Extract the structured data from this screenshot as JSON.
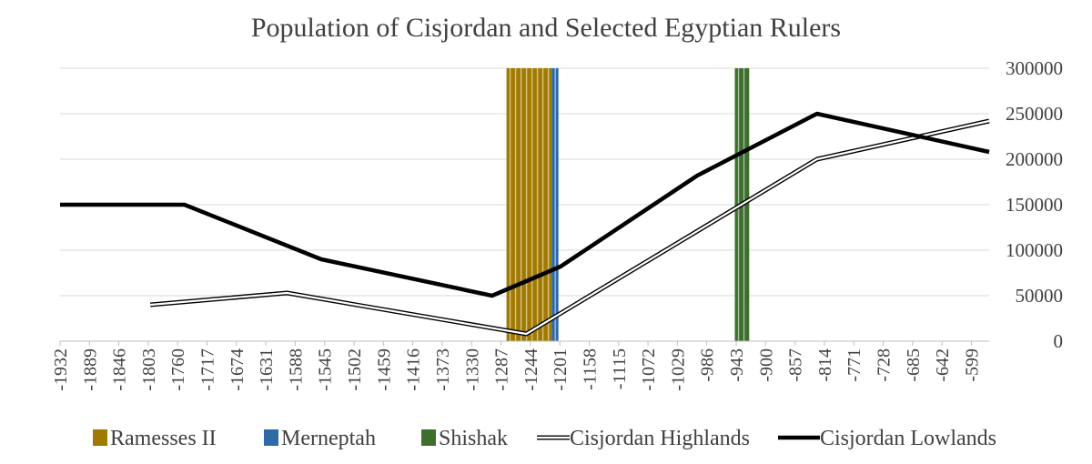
{
  "chart_data": {
    "type": "line",
    "title": "Population of  Cisjordan and Selected Egyptian Rulers",
    "xlabel": "",
    "ylabel": "",
    "x_start": -1932,
    "x_step": 43,
    "x_ticks": [
      -1932,
      -1889,
      -1846,
      -1803,
      -1760,
      -1717,
      -1674,
      -1631,
      -1588,
      -1545,
      -1502,
      -1459,
      -1416,
      -1373,
      -1330,
      -1287,
      -1244,
      -1201,
      -1158,
      -1115,
      -1072,
      -1029,
      -986,
      -943,
      -900,
      -857,
      -814,
      -771,
      -728,
      -685,
      -642,
      -599
    ],
    "x_ticks_labels": [
      "-1932",
      "-1889",
      "-1846",
      "-1803",
      "-1760",
      "-1717",
      "-1674",
      "-1631",
      "-1588",
      "-1545",
      "-1502",
      "-1459",
      "-1416",
      "-1373",
      "-1330",
      "-1287",
      "-1244",
      "-1201",
      "-1158",
      "-1115",
      "-1072",
      "-1029",
      "-986",
      "-943",
      "-900",
      "-857",
      "-814",
      "-771",
      "-728",
      "-685",
      "-642",
      "-599"
    ],
    "xlim": [
      -1932,
      -573
    ],
    "ylim": [
      0,
      300000
    ],
    "y_ticks": [
      0,
      50000,
      100000,
      150000,
      200000,
      250000,
      300000
    ],
    "y_ticks_labels": [
      "0",
      "50000",
      "100000",
      "150000",
      "200000",
      "250000",
      "300000"
    ],
    "y_axis_position": "right",
    "grid": true,
    "legend_position": "bottom",
    "reigns": [
      {
        "name": "Ramesses II",
        "start": -1279,
        "end": -1213,
        "color": "#a07a00"
      },
      {
        "name": "Merneptah",
        "start": -1213,
        "end": -1203,
        "color": "#2e6aa6"
      },
      {
        "name": "Shishak",
        "start": -945,
        "end": -924,
        "color": "#3e6e2e"
      }
    ],
    "series": [
      {
        "name": "Cisjordan Highlands",
        "style": "double",
        "points": [
          [
            -1800,
            40000
          ],
          [
            -1600,
            53000
          ],
          [
            -1250,
            8000
          ],
          [
            -825,
            200000
          ],
          [
            -573,
            242000
          ]
        ]
      },
      {
        "name": "Cisjordan Lowlands",
        "style": "thick",
        "points": [
          [
            -1932,
            150000
          ],
          [
            -1750,
            150000
          ],
          [
            -1550,
            90000
          ],
          [
            -1300,
            50000
          ],
          [
            -1200,
            82000
          ],
          [
            -1000,
            182000
          ],
          [
            -825,
            250000
          ],
          [
            -573,
            208000
          ]
        ]
      }
    ]
  },
  "legend": {
    "items": [
      {
        "label": "Ramesses II",
        "type": "swatch",
        "color": "#a07a00"
      },
      {
        "label": "Merneptah",
        "type": "swatch",
        "color": "#2e6aa6"
      },
      {
        "label": "Shishak",
        "type": "swatch",
        "color": "#3e6e2e"
      },
      {
        "label": "Cisjordan Highlands",
        "type": "double-line"
      },
      {
        "label": "Cisjordan Lowlands",
        "type": "thick-line"
      }
    ]
  }
}
